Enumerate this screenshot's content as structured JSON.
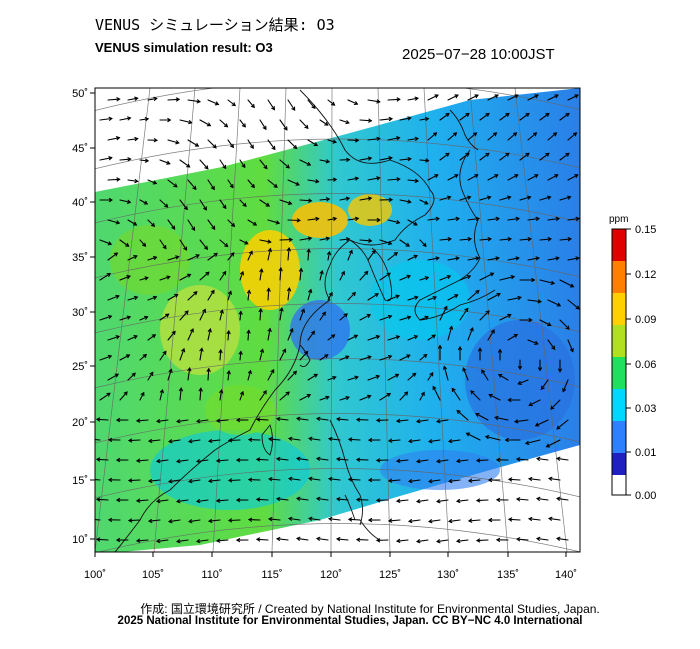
{
  "header": {
    "title_jp": "VENUS シミュレーション結果: O3",
    "title_en": "VENUS simulation result: O3",
    "timestamp": "2025−07−28 10:00JST"
  },
  "map": {
    "lon_ticks": [
      "100˚",
      "105˚",
      "110˚",
      "115˚",
      "120˚",
      "125˚",
      "130˚",
      "135˚",
      "140˚"
    ],
    "lat_ticks": [
      "50˚",
      "45˚",
      "40˚",
      "35˚",
      "30˚",
      "25˚",
      "20˚",
      "15˚",
      "10˚"
    ],
    "field": "O3 concentration with wind vectors"
  },
  "colorbar": {
    "unit": "ppm",
    "tick_labels": [
      "0.15",
      "0.12",
      "0.09",
      "0.06",
      "0.03",
      "0.01",
      "0.00"
    ],
    "colors": [
      "#ffffff",
      "#2020c0",
      "#2f80ff",
      "#00d8ff",
      "#20e060",
      "#b0e020",
      "#ffd000",
      "#ff8000",
      "#e00000"
    ]
  },
  "footer": {
    "credit_line": "作成: 国立環境研究所 / Created by National Institute for Environmental Studies, Japan.",
    "license_line": "2025 National Institute for Environmental Studies, Japan. CC BY−NC 4.0 International"
  }
}
